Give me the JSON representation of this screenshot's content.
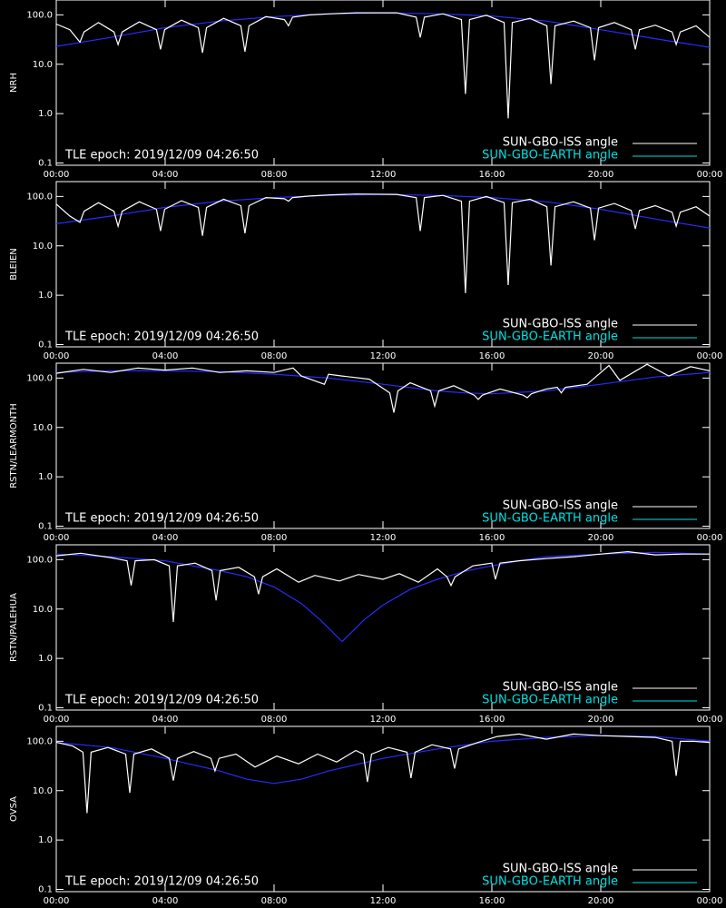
{
  "chart_data": [
    {
      "type": "line",
      "ylabel": "NRH",
      "annotation": "TLE epoch: 2019/12/09 04:26:50",
      "log_y": true,
      "xlim": [
        0,
        24
      ],
      "xticks": [
        {
          "value": 0,
          "label": "00:00"
        },
        {
          "value": 4,
          "label": "04:00"
        },
        {
          "value": 8,
          "label": "08:00"
        },
        {
          "value": 12,
          "label": "12:00"
        },
        {
          "value": 16,
          "label": "16:00"
        },
        {
          "value": 20,
          "label": "20:00"
        },
        {
          "value": 24,
          "label": "00:00"
        }
      ],
      "ylim": [
        0.09,
        200
      ],
      "yticks": [
        0.1,
        {
          "value": 1,
          "label": "1.0"
        },
        {
          "value": 10,
          "label": "10.0"
        },
        {
          "value": 100,
          "label": "100.0"
        }
      ],
      "series": [
        {
          "name": "SUN-GBO-ISS angle",
          "color": "#ffffff",
          "x": [
            0,
            0.5,
            0.87,
            1.02,
            1.55,
            2.12,
            2.27,
            2.42,
            3.05,
            3.68,
            3.83,
            3.98,
            4.6,
            5.22,
            5.37,
            5.52,
            6.15,
            6.78,
            6.93,
            7.08,
            7.7,
            8.38,
            8.53,
            8.68,
            9.3,
            10.1,
            11.0,
            12.5,
            13.22,
            13.37,
            13.52,
            14.2,
            14.88,
            15.03,
            15.18,
            15.8,
            16.45,
            16.6,
            16.75,
            17.4,
            18.02,
            18.17,
            18.32,
            19.0,
            19.62,
            19.77,
            19.92,
            20.5,
            21.12,
            21.27,
            21.42,
            22.0,
            22.62,
            22.77,
            22.92,
            23.5,
            24
          ],
          "values": [
            65,
            50,
            28,
            45,
            70,
            45,
            25,
            45,
            72,
            50,
            20,
            50,
            78,
            55,
            17,
            55,
            85,
            60,
            18,
            60,
            92,
            80,
            60,
            90,
            100,
            105,
            110,
            110,
            90,
            35,
            90,
            105,
            80,
            2.5,
            80,
            98,
            70,
            0.8,
            70,
            85,
            60,
            4,
            60,
            75,
            55,
            12,
            55,
            70,
            50,
            20,
            50,
            62,
            45,
            25,
            45,
            60,
            35
          ]
        },
        {
          "name": "SUN-GBO-EARTH angle",
          "color": "#00e0e0",
          "curve_color": "#2a2aff",
          "x": [
            0,
            2,
            4,
            6,
            8,
            10,
            12,
            14,
            16,
            18,
            20,
            22,
            24
          ],
          "values": [
            23,
            35,
            55,
            75,
            92,
            105,
            110,
            105,
            95,
            75,
            50,
            33,
            22
          ]
        }
      ]
    },
    {
      "type": "line",
      "ylabel": "BLEIEN",
      "annotation": "TLE epoch: 2019/12/09 04:26:50",
      "log_y": true,
      "xlim": [
        0,
        24
      ],
      "xticks": [
        {
          "value": 0,
          "label": "00:00"
        },
        {
          "value": 4,
          "label": "04:00"
        },
        {
          "value": 8,
          "label": "08:00"
        },
        {
          "value": 12,
          "label": "12:00"
        },
        {
          "value": 16,
          "label": "16:00"
        },
        {
          "value": 20,
          "label": "20:00"
        },
        {
          "value": 24,
          "label": "00:00"
        }
      ],
      "ylim": [
        0.09,
        200
      ],
      "yticks": [
        0.1,
        {
          "value": 1,
          "label": "1.0"
        },
        {
          "value": 10,
          "label": "10.0"
        },
        {
          "value": 100,
          "label": "100.0"
        }
      ],
      "series": [
        {
          "name": "SUN-GBO-ISS angle",
          "color": "#ffffff",
          "x": [
            0,
            0.5,
            0.87,
            1.02,
            1.55,
            2.12,
            2.27,
            2.42,
            3.05,
            3.68,
            3.83,
            3.98,
            4.6,
            5.22,
            5.37,
            5.52,
            6.15,
            6.78,
            6.93,
            7.08,
            7.7,
            8.38,
            8.53,
            8.68,
            9.3,
            10.1,
            11.0,
            12.5,
            13.22,
            13.37,
            13.52,
            14.2,
            14.88,
            15.03,
            15.18,
            15.8,
            16.45,
            16.6,
            16.75,
            17.4,
            18.02,
            18.17,
            18.32,
            19.0,
            19.62,
            19.77,
            19.92,
            20.5,
            21.12,
            21.27,
            21.42,
            22.0,
            22.62,
            22.77,
            22.92,
            23.5,
            24
          ],
          "values": [
            70,
            40,
            30,
            50,
            75,
            50,
            25,
            50,
            78,
            55,
            20,
            55,
            82,
            60,
            16,
            60,
            88,
            65,
            18,
            65,
            95,
            90,
            80,
            95,
            102,
            108,
            112,
            110,
            95,
            20,
            95,
            105,
            80,
            1.1,
            80,
            100,
            75,
            1.6,
            75,
            88,
            62,
            4,
            62,
            78,
            58,
            13,
            58,
            72,
            52,
            22,
            52,
            65,
            48,
            25,
            48,
            62,
            40
          ]
        },
        {
          "name": "SUN-GBO-EARTH angle",
          "color": "#00e0e0",
          "curve_color": "#2a2aff",
          "x": [
            0,
            2,
            4,
            6,
            8,
            10,
            12,
            14,
            16,
            18,
            20,
            22,
            24
          ],
          "values": [
            28,
            40,
            60,
            80,
            95,
            105,
            110,
            105,
            95,
            78,
            55,
            35,
            23
          ]
        }
      ]
    },
    {
      "type": "line",
      "ylabel": "RSTN/LEARMONTH",
      "annotation": "TLE epoch: 2019/12/09 04:26:50",
      "log_y": true,
      "xlim": [
        0,
        24
      ],
      "xticks": [
        {
          "value": 0,
          "label": "00:00"
        },
        {
          "value": 4,
          "label": "04:00"
        },
        {
          "value": 8,
          "label": "08:00"
        },
        {
          "value": 12,
          "label": "12:00"
        },
        {
          "value": 16,
          "label": "16:00"
        },
        {
          "value": 20,
          "label": "20:00"
        },
        {
          "value": 24,
          "label": "00:00"
        }
      ],
      "ylim": [
        0.09,
        200
      ],
      "yticks": [
        0.1,
        {
          "value": 1,
          "label": "1.0"
        },
        {
          "value": 10,
          "label": "10.0"
        },
        {
          "value": 100,
          "label": "100.0"
        }
      ],
      "series": [
        {
          "name": "SUN-GBO-ISS angle",
          "color": "#ffffff",
          "x": [
            0,
            1,
            2,
            3,
            4,
            5,
            6,
            7,
            8,
            8.7,
            9.0,
            9.85,
            10.0,
            10.5,
            11.5,
            12.25,
            12.4,
            12.55,
            13.0,
            13.75,
            13.9,
            14.05,
            14.6,
            15.35,
            15.5,
            15.65,
            16.3,
            17.15,
            17.3,
            17.45,
            18.0,
            18.4,
            18.55,
            18.7,
            19.5,
            20.3,
            20.7,
            21.7,
            22.5,
            23.3,
            24
          ],
          "values": [
            125,
            150,
            130,
            160,
            145,
            160,
            130,
            140,
            130,
            160,
            110,
            75,
            120,
            110,
            95,
            50,
            20,
            55,
            80,
            55,
            27,
            55,
            70,
            45,
            37,
            45,
            60,
            45,
            40,
            48,
            60,
            65,
            50,
            65,
            75,
            180,
            90,
            190,
            110,
            170,
            140
          ]
        },
        {
          "name": "SUN-GBO-EARTH angle",
          "color": "#00e0e0",
          "curve_color": "#2a2aff",
          "x": [
            0,
            2,
            4,
            6,
            8,
            10,
            12,
            14,
            15,
            16,
            18,
            20,
            22,
            24
          ],
          "values": [
            130,
            140,
            140,
            135,
            120,
            100,
            75,
            55,
            50,
            48,
            55,
            75,
            105,
            130
          ]
        }
      ]
    },
    {
      "type": "line",
      "ylabel": "RSTN/PALEHUA",
      "annotation": "TLE epoch: 2019/12/09 04:26:50",
      "log_y": true,
      "xlim": [
        0,
        24
      ],
      "xticks": [
        {
          "value": 0,
          "label": "00:00"
        },
        {
          "value": 4,
          "label": "04:00"
        },
        {
          "value": 8,
          "label": "08:00"
        },
        {
          "value": 12,
          "label": "12:00"
        },
        {
          "value": 16,
          "label": "16:00"
        },
        {
          "value": 20,
          "label": "20:00"
        },
        {
          "value": 24,
          "label": "00:00"
        }
      ],
      "ylim": [
        0.09,
        200
      ],
      "yticks": [
        0.1,
        {
          "value": 1,
          "label": "1.0"
        },
        {
          "value": 10,
          "label": "10.0"
        },
        {
          "value": 100,
          "label": "100.0"
        }
      ],
      "series": [
        {
          "name": "SUN-GBO-ISS angle",
          "color": "#ffffff",
          "x": [
            0,
            0.9,
            2.0,
            2.6,
            2.75,
            2.9,
            3.6,
            4.15,
            4.3,
            4.45,
            5.1,
            5.72,
            5.87,
            6.02,
            6.7,
            7.28,
            7.43,
            7.58,
            8.1,
            8.9,
            9.5,
            10.4,
            11.1,
            12.0,
            12.6,
            13.3,
            14.0,
            14.35,
            14.5,
            14.65,
            15.3,
            16.0,
            16.13,
            16.3,
            17.0,
            18.0,
            19.0,
            20.0,
            21.0,
            22.0,
            23.0,
            24.0
          ],
          "values": [
            120,
            135,
            110,
            95,
            30,
            95,
            100,
            75,
            5.5,
            75,
            85,
            60,
            15,
            60,
            70,
            45,
            20,
            45,
            65,
            35,
            48,
            37,
            50,
            40,
            52,
            35,
            65,
            45,
            30,
            45,
            75,
            85,
            40,
            85,
            95,
            105,
            115,
            130,
            145,
            125,
            130,
            130
          ]
        },
        {
          "name": "SUN-GBO-EARTH angle",
          "color": "#00e0e0",
          "curve_color": "#2a2aff",
          "x": [
            0,
            2,
            4,
            5,
            6,
            7,
            8,
            9,
            9.7,
            10.2,
            10.5,
            10.8,
            11.3,
            12,
            13,
            14,
            15,
            16,
            17,
            18,
            20,
            22,
            24
          ],
          "values": [
            130,
            115,
            95,
            75,
            60,
            45,
            28,
            13,
            6,
            3.2,
            2.2,
            3.2,
            6,
            12,
            25,
            40,
            58,
            75,
            95,
            115,
            130,
            140,
            130
          ]
        }
      ]
    },
    {
      "type": "line",
      "ylabel": "OVSA",
      "annotation": "TLE epoch: 2019/12/09 04:26:50",
      "log_y": true,
      "xlim": [
        0,
        24
      ],
      "xticks": [
        {
          "value": 0,
          "label": "00:00"
        },
        {
          "value": 4,
          "label": "04:00"
        },
        {
          "value": 8,
          "label": "08:00"
        },
        {
          "value": 12,
          "label": "12:00"
        },
        {
          "value": 16,
          "label": "16:00"
        },
        {
          "value": 20,
          "label": "20:00"
        },
        {
          "value": 24,
          "label": "00:00"
        }
      ],
      "ylim": [
        0.09,
        200
      ],
      "yticks": [
        0.1,
        {
          "value": 1,
          "label": "1.0"
        },
        {
          "value": 10,
          "label": "10.0"
        },
        {
          "value": 100,
          "label": "100.0"
        }
      ],
      "series": [
        {
          "name": "SUN-GBO-ISS angle",
          "color": "#ffffff",
          "x": [
            0,
            0.6,
            0.98,
            1.13,
            1.28,
            1.9,
            2.55,
            2.7,
            2.85,
            3.5,
            4.15,
            4.3,
            4.45,
            5.05,
            5.68,
            5.83,
            5.98,
            6.6,
            7.3,
            8.1,
            8.9,
            9.6,
            10.3,
            11.0,
            11.28,
            11.43,
            11.58,
            12.2,
            12.88,
            13.03,
            13.18,
            13.8,
            14.48,
            14.63,
            14.78,
            15.5,
            16.2,
            17.0,
            18.0,
            19.0,
            20.0,
            21.0,
            22.0,
            22.62,
            22.77,
            22.92,
            23.4,
            24
          ],
          "values": [
            95,
            80,
            60,
            3.5,
            60,
            75,
            55,
            9,
            55,
            70,
            45,
            16,
            45,
            62,
            45,
            25,
            45,
            55,
            30,
            50,
            35,
            55,
            38,
            65,
            55,
            15,
            55,
            75,
            60,
            18,
            60,
            85,
            70,
            28,
            70,
            95,
            125,
            140,
            110,
            140,
            130,
            125,
            120,
            100,
            20,
            100,
            100,
            95
          ]
        },
        {
          "name": "SUN-GBO-EARTH angle",
          "color": "#00e0e0",
          "curve_color": "#2a2aff",
          "x": [
            0,
            2,
            4,
            6,
            7,
            8,
            9,
            10,
            12,
            14,
            16,
            18,
            20,
            22,
            24
          ],
          "values": [
            95,
            75,
            45,
            25,
            17,
            14,
            17,
            25,
            45,
            70,
            100,
            120,
            130,
            125,
            100
          ]
        }
      ]
    }
  ]
}
